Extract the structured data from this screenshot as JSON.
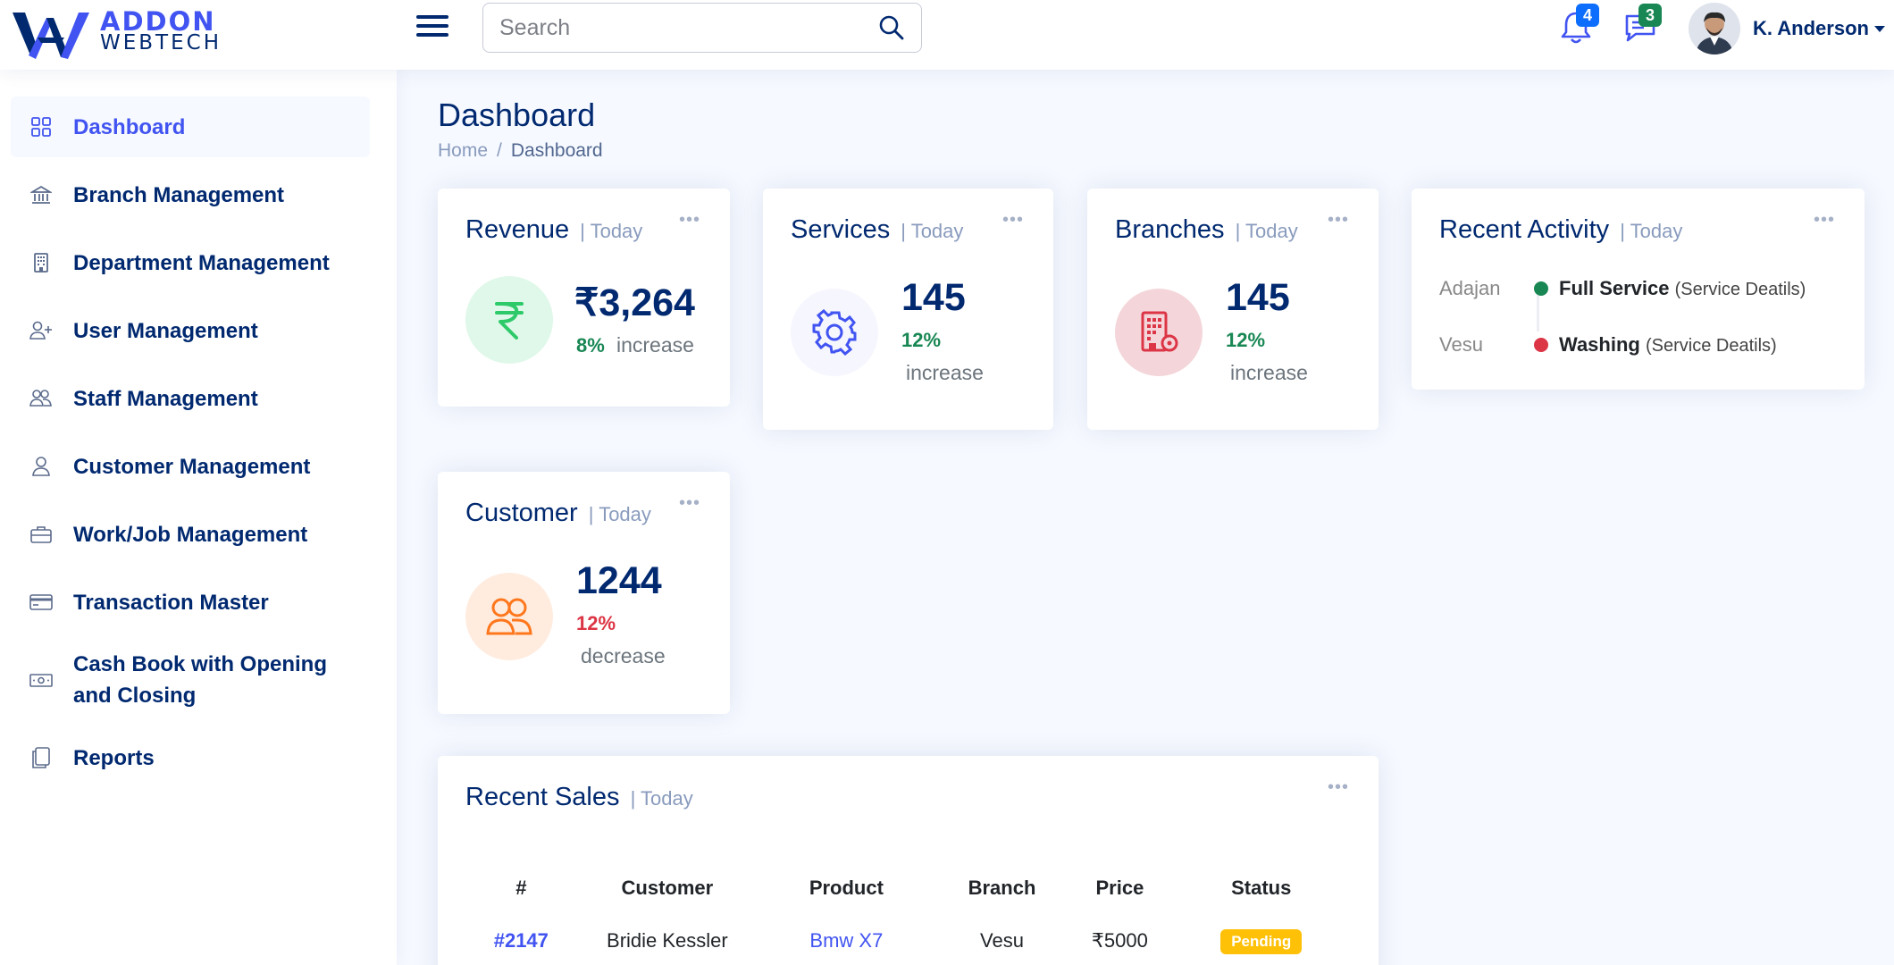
{
  "header": {
    "logo_line1": "ADDON",
    "logo_line2": "WEBTECH",
    "search_placeholder": "Search",
    "notifications_count": "4",
    "messages_count": "3",
    "user_name": "K. Anderson"
  },
  "colors": {
    "primary": "#4154f1",
    "navy": "#012970",
    "success": "#198754",
    "danger": "#dc3545",
    "warning": "#ffc107",
    "notif_badge": "#0d6efd",
    "msg_badge": "#198754"
  },
  "sidebar": {
    "items": [
      {
        "label": "Dashboard",
        "icon": "grid-icon",
        "active": true
      },
      {
        "label": "Branch Management",
        "icon": "bank-icon"
      },
      {
        "label": "Department Management",
        "icon": "building-icon"
      },
      {
        "label": "User Management",
        "icon": "person-plus-icon"
      },
      {
        "label": "Staff Management",
        "icon": "people-icon"
      },
      {
        "label": "Customer Management",
        "icon": "person-icon"
      },
      {
        "label": "Work/Job Management",
        "icon": "briefcase-icon"
      },
      {
        "label": "Transaction Master",
        "icon": "credit-card-icon"
      },
      {
        "label": "Cash Book with Opening and Closing",
        "icon": "cash-icon"
      },
      {
        "label": "Reports",
        "icon": "copy-icon"
      }
    ]
  },
  "page": {
    "title": "Dashboard",
    "breadcrumb": [
      "Home",
      "Dashboard"
    ]
  },
  "cards": {
    "revenue": {
      "title": "Revenue",
      "period": "| Today",
      "value": "₹3,264",
      "pct": "8%",
      "trend": "increase"
    },
    "services": {
      "title": "Services",
      "period": "| Today",
      "value": "145",
      "pct": "12%",
      "trend": "increase"
    },
    "branches": {
      "title": "Branches",
      "period": "| Today",
      "value": "145",
      "pct": "12%",
      "trend": "increase"
    },
    "customer": {
      "title": "Customer",
      "period": "| Today",
      "value": "1244",
      "pct": "12%",
      "trend": "decrease"
    },
    "activity": {
      "title": "Recent Activity",
      "period": "| Today",
      "items": [
        {
          "label": "Adajan",
          "text": "Full Service",
          "detail": "(Service Deatils)",
          "dot": "#198754"
        },
        {
          "label": "Vesu",
          "text": "Washing",
          "detail": "(Service Deatils)",
          "dot": "#dc3545"
        }
      ]
    },
    "sales": {
      "title": "Recent Sales",
      "period": "| Today",
      "columns": [
        "#",
        "Customer",
        "Product",
        "Branch",
        "Price",
        "Status"
      ],
      "rows": [
        {
          "id": "#2147",
          "customer": "Bridie Kessler",
          "product": "Bmw X7",
          "branch": "Vesu",
          "price": "₹5000",
          "status": "Pending"
        }
      ]
    }
  }
}
